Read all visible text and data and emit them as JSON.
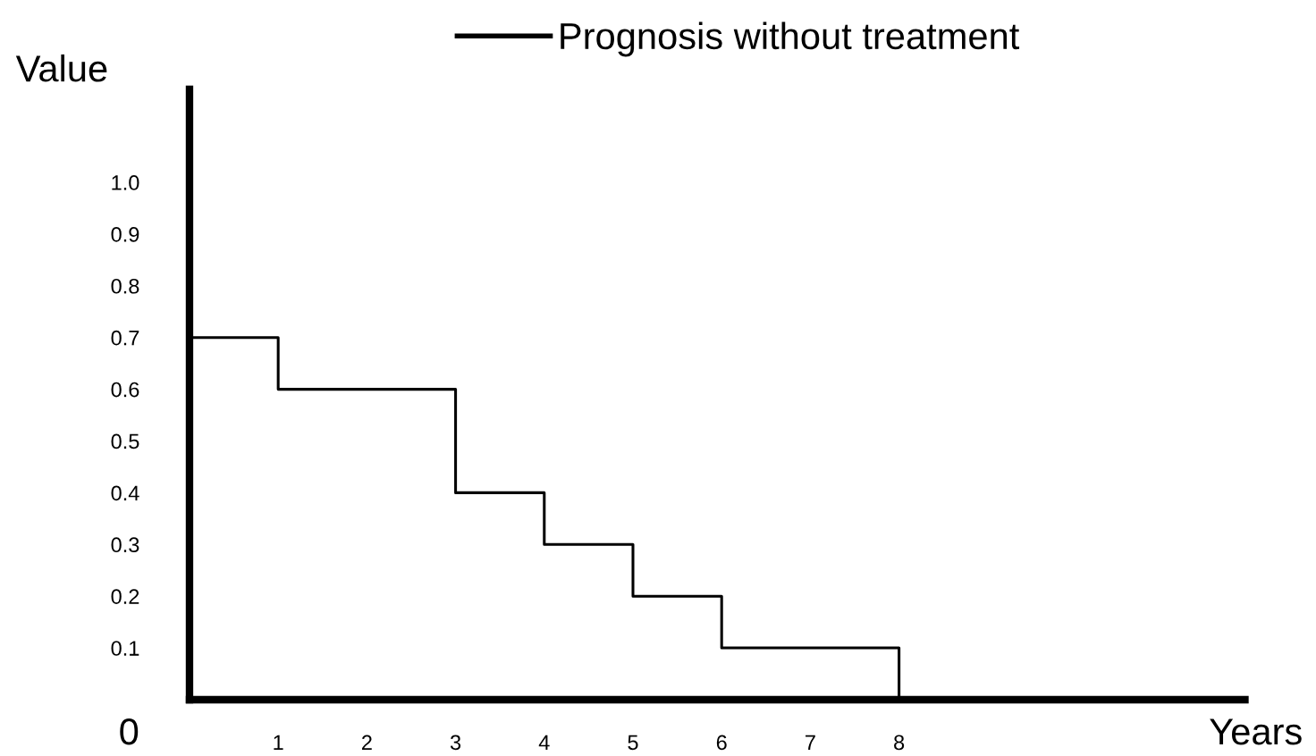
{
  "chart_data": {
    "type": "step",
    "ylabel": "Value",
    "xlabel": "Years",
    "annotations": [
      "0"
    ],
    "x": [
      0,
      1,
      3,
      4,
      5,
      6,
      8
    ],
    "series": [
      {
        "name": "Prognosis without treatment",
        "color": "#000000",
        "values": [
          0.7,
          0.6,
          0.4,
          0.3,
          0.2,
          0.1,
          0
        ]
      }
    ],
    "xlim": [
      0,
      11.9
    ],
    "xticks": [
      1,
      2,
      3,
      4,
      5,
      6,
      7,
      8
    ],
    "ylim": [
      0,
      1.18
    ],
    "yticks": [
      0.1,
      0.2,
      0.3,
      0.4,
      0.5,
      0.6,
      0.7,
      0.8,
      0.9,
      {
        "value": 1.0,
        "label": "1.0"
      }
    ],
    "grid": false,
    "legend": "top",
    "marker": "none",
    "line_style": "solid"
  }
}
